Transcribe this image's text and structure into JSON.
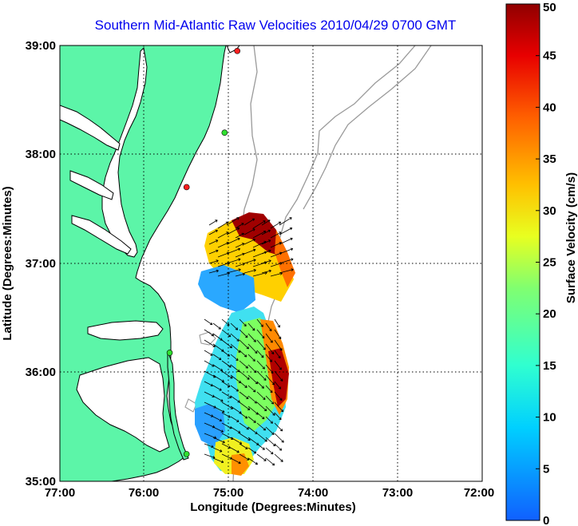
{
  "title": "Southern Mid-Atlantic Raw Velocities 2010/04/29 0700 GMT",
  "x_axis": {
    "label": "Longitude (Degrees:Minutes)",
    "ticks": [
      "77:00",
      "76:00",
      "75:00",
      "74:00",
      "73:00",
      "72:00"
    ]
  },
  "y_axis": {
    "label": "Latitude (Degrees:Minutes)",
    "ticks": [
      "39:00",
      "38:00",
      "37:00",
      "36:00",
      "35:00"
    ]
  },
  "colorbar": {
    "label": "Surface Velocity (cm/s)",
    "ticks": [
      "50",
      "45",
      "40",
      "35",
      "30",
      "25",
      "20",
      "15",
      "10",
      "5",
      "0"
    ],
    "min": 0,
    "max": 50
  },
  "map": {
    "land_color": "#5cf5a8",
    "water_color": "#ffffff",
    "coastline_color": "#000000",
    "bathymetry_color": "#9a9a9a",
    "grid": "dotted",
    "lon_range": [
      -77,
      -72
    ],
    "lat_range": [
      35,
      39
    ]
  },
  "radar_sites": [
    {
      "lon": -74.9,
      "lat": 38.95,
      "color": "#ff2020"
    },
    {
      "lon": -75.05,
      "lat": 38.2,
      "color": "#30e030"
    },
    {
      "lon": -75.5,
      "lat": 37.7,
      "color": "#ff2020"
    },
    {
      "lon": -75.7,
      "lat": 36.18,
      "color": "#30e030"
    },
    {
      "lon": -75.5,
      "lat": 35.25,
      "color": "#30e030"
    }
  ]
}
